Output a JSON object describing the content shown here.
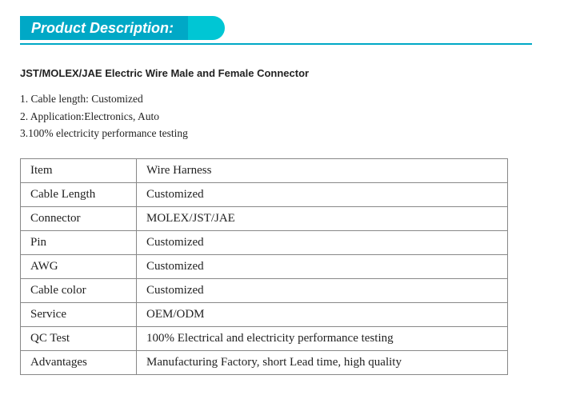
{
  "header": {
    "title": "Product Description:",
    "banner_color": "#00a8c6",
    "tab_color": "#00c6d4",
    "line_color": "#00a8c6"
  },
  "sub_title": "JST/MOLEX/JAE Electric Wire Male and Female Connector",
  "bullets": [
    "1. Cable length: Customized",
    "2. Application:Electronics, Auto",
    "3.100% electricity performance testing"
  ],
  "table": {
    "rows": [
      {
        "label": "Item",
        "value": "Wire Harness"
      },
      {
        "label": "Cable Length",
        "value": "Customized"
      },
      {
        "label": "Connector",
        "value": "MOLEX/JST/JAE"
      },
      {
        "label": "Pin",
        "value": "Customized"
      },
      {
        "label": "AWG",
        "value": "Customized"
      },
      {
        "label": "Cable color",
        "value": "Customized"
      },
      {
        "label": "Service",
        "value": "OEM/ODM"
      },
      {
        "label": "QC Test",
        "value": "100% Electrical and electricity performance testing"
      },
      {
        "label": "Advantages",
        "value": "Manufacturing Factory, short Lead time, high quality"
      }
    ]
  }
}
